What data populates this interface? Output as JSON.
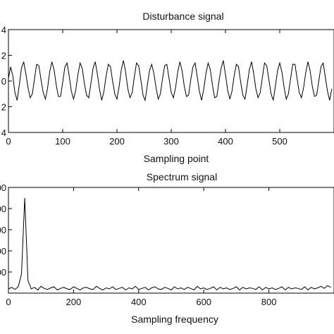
{
  "chart_data": [
    {
      "type": "line",
      "title": "Disturbance signal",
      "xlabel": "Sampling point",
      "ylabel": "",
      "xlim": [
        0,
        600
      ],
      "ylim": [
        -4,
        4
      ],
      "xticks": [
        "0",
        "100",
        "200",
        "300",
        "400",
        "500"
      ],
      "yticks": [
        "4",
        "2",
        "0",
        "2",
        "4"
      ],
      "grid": false,
      "legend": "none",
      "line_color": "#000000",
      "series": [
        {
          "sampling": "every 4th sample, x = 0..596",
          "x_start": 0,
          "x_step": 4,
          "values": [
            0.2,
            1.1,
            0.4,
            -0.9,
            -1.5,
            -0.3,
            1.0,
            1.5,
            0.6,
            -0.5,
            -1.3,
            -1.0,
            0.2,
            1.3,
            1.2,
            0.1,
            -0.9,
            -1.4,
            -0.6,
            0.7,
            1.5,
            0.9,
            -0.3,
            -1.2,
            -1.2,
            -0.1,
            1.1,
            1.4,
            0.4,
            -0.8,
            -1.4,
            -0.7,
            0.5,
            1.4,
            1.0,
            -0.2,
            -1.1,
            -1.3,
            -0.2,
            1.0,
            1.5,
            0.5,
            -0.7,
            -1.5,
            -0.8,
            0.4,
            1.3,
            1.1,
            0.0,
            -1.0,
            -1.4,
            -0.4,
            0.9,
            1.6,
            0.7,
            -0.6,
            -1.3,
            -0.9,
            0.3,
            1.4,
            1.2,
            0.1,
            -1.1,
            -1.5,
            -0.3,
            0.8,
            1.3,
            0.6,
            -0.5,
            -1.4,
            -1.0,
            0.2,
            1.2,
            1.3,
            0.2,
            -0.9,
            -1.3,
            -0.5,
            0.7,
            1.5,
            0.8,
            -0.4,
            -1.2,
            -1.1,
            0.1,
            1.1,
            1.4,
            0.3,
            -0.8,
            -1.5,
            -0.6,
            0.6,
            1.4,
            0.9,
            -0.3,
            -1.3,
            -1.2,
            0.0,
            1.0,
            1.6,
            0.5,
            -0.7,
            -1.4,
            -0.8,
            0.4,
            1.3,
            1.1,
            -0.1,
            -1.1,
            -1.4,
            -0.3,
            0.9,
            1.5,
            0.6,
            -0.6,
            -1.3,
            -0.9,
            0.3,
            1.4,
            1.2,
            0.1,
            -1.0,
            -1.5,
            -0.4,
            0.8,
            1.4,
            0.7,
            -0.5,
            -1.4,
            -1.0,
            0.2,
            1.3,
            1.3,
            0.2,
            -0.9,
            -1.3,
            -0.5,
            0.7,
            1.5,
            0.8,
            -0.4,
            -1.2,
            -1.1,
            0.0,
            1.1,
            1.4,
            0.3,
            -0.8,
            -1.5,
            -0.6
          ]
        }
      ]
    },
    {
      "type": "line",
      "title": "Spectrum signal",
      "xlabel": "Sampling frequency",
      "ylabel": "",
      "xlim": [
        0,
        1000
      ],
      "ylim": [
        0,
        1000
      ],
      "xticks": [
        "0",
        "200",
        "400",
        "600",
        "800"
      ],
      "yticks": [
        "00",
        "00",
        "00",
        "00",
        "00"
      ],
      "grid": false,
      "legend": "none",
      "line_color": "#000000",
      "peak": {
        "x": 50,
        "y": 900
      },
      "series": [
        {
          "sampling": "every 10 units of frequency, x = 0..990",
          "x_start": 0,
          "x_step": 10,
          "values": [
            40,
            55,
            35,
            60,
            180,
            900,
            120,
            40,
            55,
            30,
            65,
            45,
            35,
            50,
            60,
            30,
            45,
            55,
            40,
            35,
            60,
            45,
            30,
            50,
            55,
            40,
            35,
            65,
            45,
            30,
            50,
            40,
            60,
            35,
            45,
            55,
            30,
            50,
            40,
            65,
            35,
            45,
            55,
            30,
            50,
            60,
            40,
            35,
            55,
            45,
            30,
            60,
            40,
            50,
            35,
            55,
            45,
            30,
            65,
            40,
            50,
            35,
            45,
            60,
            30,
            55,
            40,
            50,
            35,
            45,
            60,
            30,
            55,
            40,
            50,
            45,
            35,
            60,
            30,
            55,
            40,
            50,
            35,
            45,
            60,
            30,
            55,
            40,
            50,
            45,
            35,
            60,
            30,
            55,
            40,
            50,
            65,
            45,
            70,
            55
          ]
        }
      ]
    }
  ]
}
